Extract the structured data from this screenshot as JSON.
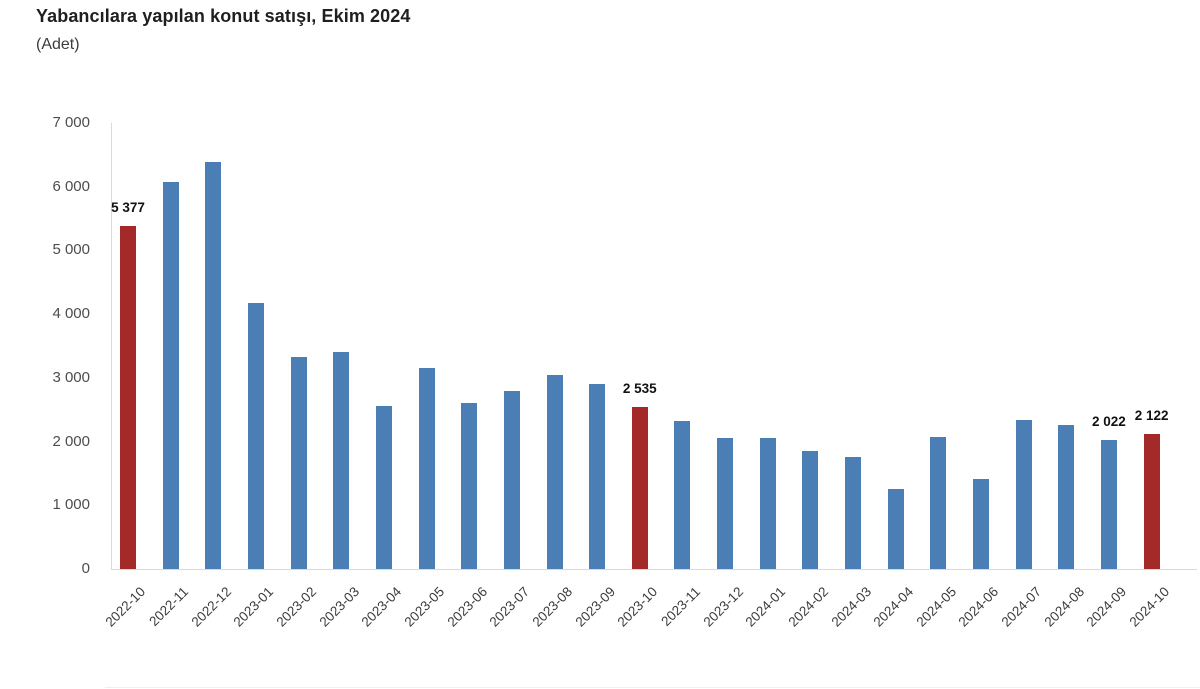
{
  "chart_data": {
    "type": "bar",
    "title": "Yabancılara yapılan konut satışı, Ekim 2024",
    "subtitle": "(Adet)",
    "xlabel": "",
    "ylabel": "Adet",
    "ylim": [
      0,
      7000
    ],
    "ytick_step": 1000,
    "y_tick_labels": [
      "0",
      "1 000",
      "2 000",
      "3 000",
      "4 000",
      "5 000",
      "6 000",
      "7 000"
    ],
    "grid": false,
    "legend": "none",
    "bar_color": "#4B7EB5",
    "highlight_color": "#A32A28",
    "highlight_indices": [
      0,
      12,
      24
    ],
    "categories": [
      "2022-10",
      "2022-11",
      "2022-12",
      "2023-01",
      "2023-02",
      "2023-03",
      "2023-04",
      "2023-05",
      "2023-06",
      "2023-07",
      "2023-08",
      "2023-09",
      "2023-10",
      "2023-11",
      "2023-12",
      "2024-01",
      "2024-02",
      "2024-03",
      "2024-04",
      "2024-05",
      "2024-06",
      "2024-07",
      "2024-08",
      "2024-09",
      "2024-10"
    ],
    "values": [
      5377,
      6080,
      6390,
      4170,
      3330,
      3410,
      2560,
      3160,
      2610,
      2800,
      3040,
      2910,
      2535,
      2330,
      2060,
      2055,
      1845,
      1755,
      1250,
      2065,
      1415,
      2345,
      2255,
      2022,
      2122
    ],
    "point_labels": [
      {
        "index": 0,
        "text": "5 377"
      },
      {
        "index": 12,
        "text": "2 535"
      },
      {
        "index": 23,
        "text": "2 022"
      },
      {
        "index": 24,
        "text": "2 122"
      }
    ]
  }
}
